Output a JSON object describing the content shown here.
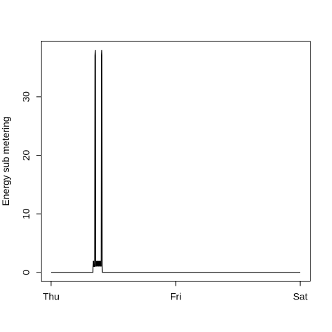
{
  "chart_data": {
    "type": "line",
    "title": "",
    "xlabel": "",
    "ylabel": "Energy sub metering",
    "x_ticks": [
      {
        "x": 0,
        "label": "Thu"
      },
      {
        "x": 1,
        "label": "Fri"
      },
      {
        "x": 2,
        "label": "Sat"
      }
    ],
    "y_ticks": [
      0,
      10,
      20,
      30
    ],
    "xlim": [
      -0.08,
      2.08
    ],
    "ylim": [
      -1.5,
      39.5
    ],
    "grid": false,
    "legend": "none",
    "series": [
      {
        "color": "#000000",
        "points": [
          [
            0.0,
            0
          ],
          [
            0.335,
            0
          ],
          [
            0.336,
            1
          ],
          [
            0.338,
            2
          ],
          [
            0.34,
            1
          ],
          [
            0.342,
            2
          ],
          [
            0.344,
            1
          ],
          [
            0.35,
            1
          ],
          [
            0.352,
            37
          ],
          [
            0.354,
            38
          ],
          [
            0.356,
            37
          ],
          [
            0.358,
            1
          ],
          [
            0.36,
            2
          ],
          [
            0.364,
            1
          ],
          [
            0.368,
            2
          ],
          [
            0.372,
            1
          ],
          [
            0.376,
            2
          ],
          [
            0.38,
            1
          ],
          [
            0.384,
            2
          ],
          [
            0.388,
            1
          ],
          [
            0.392,
            2
          ],
          [
            0.396,
            1
          ],
          [
            0.4,
            2
          ],
          [
            0.402,
            1
          ],
          [
            0.404,
            37
          ],
          [
            0.406,
            38
          ],
          [
            0.408,
            37
          ],
          [
            0.41,
            1
          ],
          [
            0.412,
            0
          ],
          [
            0.42,
            0
          ],
          [
            2.0,
            0
          ]
        ]
      }
    ]
  }
}
